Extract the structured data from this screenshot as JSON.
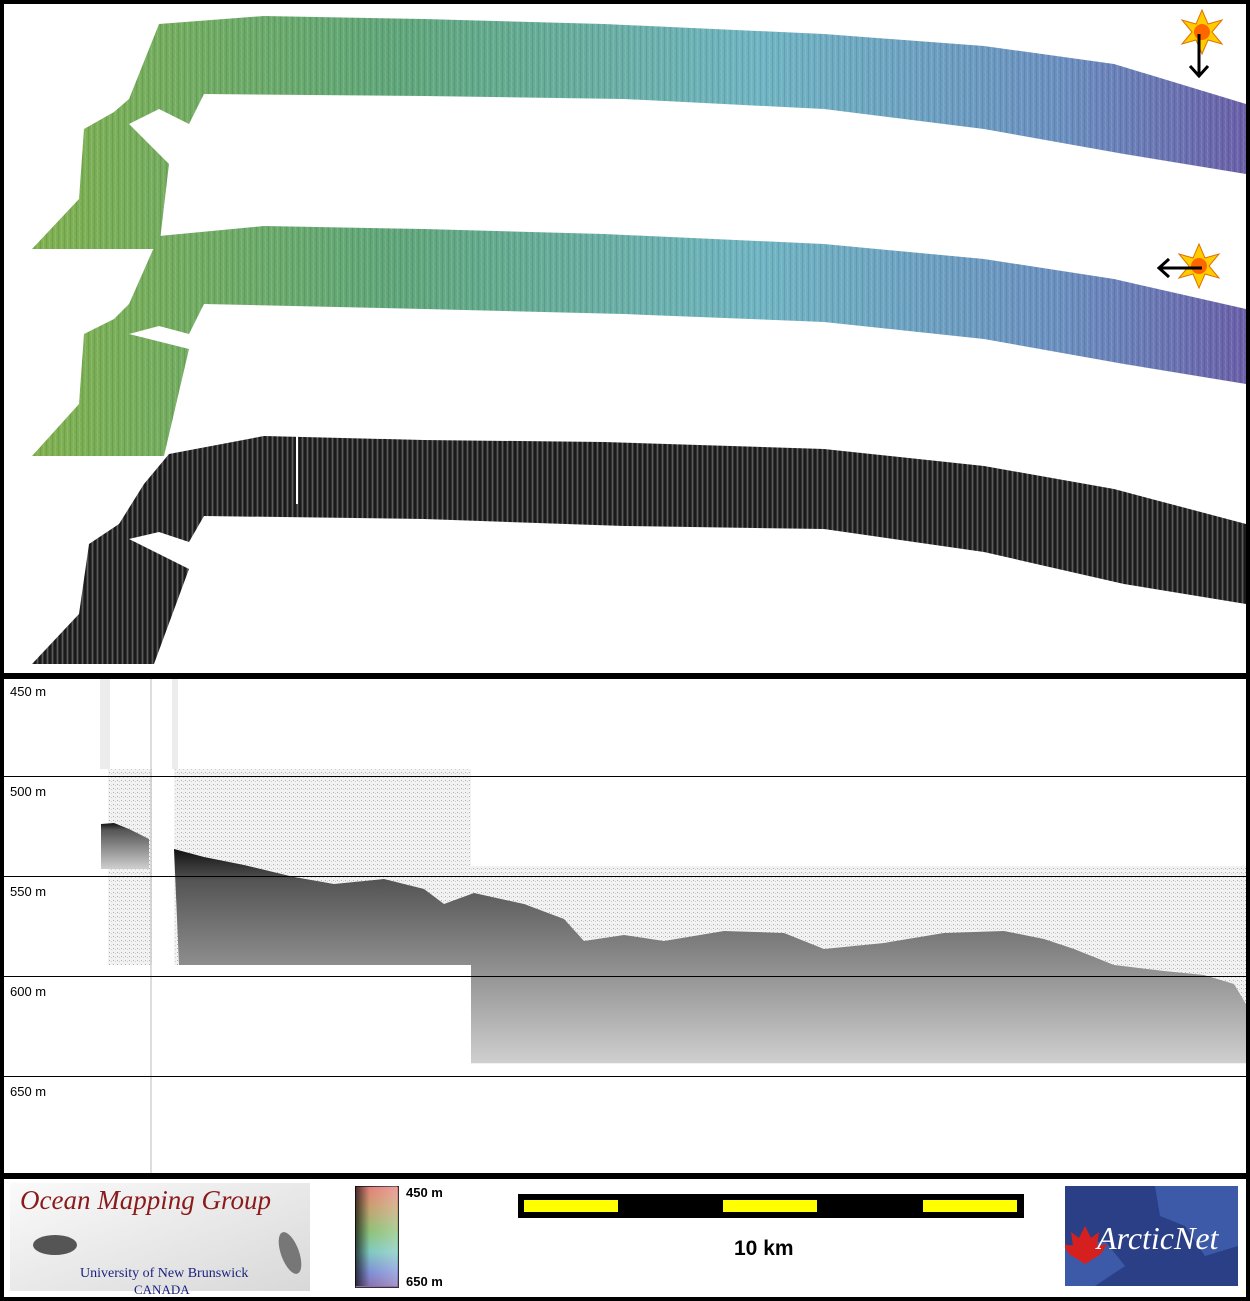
{
  "depth_labels": [
    "450 m",
    "500 m",
    "550 m",
    "600 m",
    "650 m"
  ],
  "sun_icons": [
    {
      "icon": "sun-icon",
      "arrow": "arrow-down-icon",
      "illumination": "from north"
    },
    {
      "icon": "sun-icon",
      "arrow": "arrow-left-icon",
      "illumination": "from east"
    }
  ],
  "colors": {
    "bathymetry_shallow": "#6fa04a",
    "bathymetry_mid": "#6fb8c0",
    "bathymetry_deep": "#6a6fb0",
    "backscatter": "#2a2a2a",
    "scale_segment": "#ffff00",
    "logo_red": "#8b1a1a",
    "logo_blue": "#1a237e",
    "arcticnet_bg": "#2a3f86"
  },
  "footer": {
    "logo_title": "Ocean Mapping Group",
    "logo_university": "University of New Brunswick",
    "logo_country": "CANADA",
    "colorbar_top": "450 m",
    "colorbar_bottom": "650 m",
    "scale_label": "10 km",
    "partner_logo": "ArcticNet"
  }
}
